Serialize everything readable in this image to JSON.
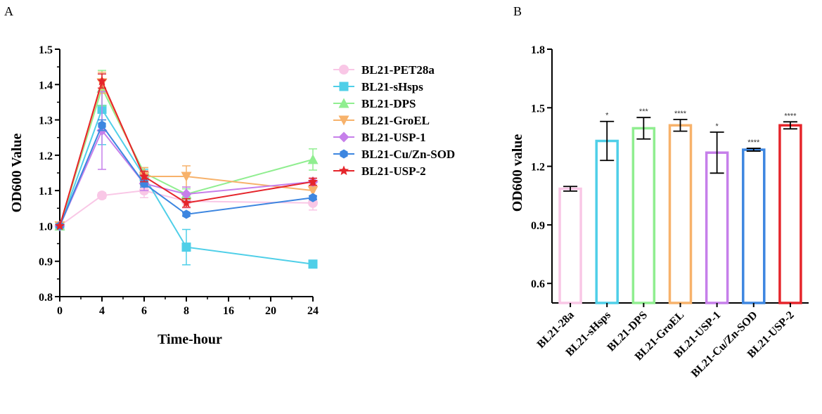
{
  "panels": {
    "a_label": "A",
    "b_label": "B"
  },
  "chart_data": [
    {
      "type": "line",
      "title": "",
      "xlabel": "Time-hour",
      "ylabel": "OD600 Value",
      "x_tick_labels": [
        "0",
        "4",
        "6",
        "8",
        "16",
        "20",
        "24"
      ],
      "x_categories": [
        "0",
        "4",
        "6",
        "8",
        "24"
      ],
      "y_ticks": [
        "0.8",
        "0.9",
        "1.0",
        "1.1",
        "1.2",
        "1.3",
        "1.4",
        "1.5"
      ],
      "ylim": [
        0.8,
        1.5
      ],
      "legend_position": "right",
      "series": [
        {
          "name": "BL21-PET28a",
          "color": "#F9C7E6",
          "marker": "circle",
          "values": [
            1.0,
            1.086,
            1.1,
            1.07,
            1.065
          ],
          "errors": [
            0,
            0.008,
            0.02,
            0.02,
            0.02
          ]
        },
        {
          "name": "BL21-sHsps",
          "color": "#4FCFE8",
          "marker": "square",
          "values": [
            1.0,
            1.33,
            1.14,
            0.94,
            0.892
          ],
          "errors": [
            0,
            0.1,
            0.02,
            0.05,
            0.005
          ]
        },
        {
          "name": "BL21-DPS",
          "color": "#90EE90",
          "marker": "triangle-up",
          "values": [
            1.0,
            1.39,
            1.15,
            1.09,
            1.188
          ],
          "errors": [
            0,
            0.05,
            0.015,
            0.015,
            0.03
          ]
        },
        {
          "name": "BL21-GroEL",
          "color": "#F7B26B",
          "marker": "triangle-down",
          "values": [
            1.0,
            1.405,
            1.14,
            1.14,
            1.1
          ],
          "errors": [
            0,
            0.03,
            0.025,
            0.03,
            0.015
          ]
        },
        {
          "name": "BL21-USP-1",
          "color": "#C67FEA",
          "marker": "diamond",
          "values": [
            1.0,
            1.27,
            1.12,
            1.09,
            1.125
          ],
          "errors": [
            0,
            0.11,
            0.02,
            0.02,
            0.01
          ]
        },
        {
          "name": "BL21-Cu/Zn-SOD",
          "color": "#3D86E0",
          "marker": "hexagon",
          "values": [
            1.0,
            1.285,
            1.12,
            1.033,
            1.08
          ],
          "errors": [
            0,
            0.015,
            0.01,
            0.005,
            0.005
          ]
        },
        {
          "name": "BL21-USP-2",
          "color": "#E5252B",
          "marker": "star",
          "values": [
            1.0,
            1.41,
            1.14,
            1.065,
            1.125
          ],
          "errors": [
            0,
            0.02,
            0.015,
            0.012,
            0.01
          ]
        }
      ]
    },
    {
      "type": "bar",
      "title": "",
      "xlabel": "",
      "ylabel": "OD600 value",
      "y_ticks": [
        "0.6",
        "0.9",
        "1.2",
        "1.5",
        "1.8"
      ],
      "ylim": [
        0.5,
        1.8
      ],
      "categories": [
        "BL21-28a",
        "BL21-sHsps",
        "BL21-DPS",
        "BL21-GroEL",
        "BL21-USP-1",
        "BL21-Cu/Zn-SOD",
        "BL21-USP-2"
      ],
      "values": [
        1.085,
        1.33,
        1.395,
        1.41,
        1.27,
        1.285,
        1.41
      ],
      "errors": [
        0.012,
        0.1,
        0.055,
        0.03,
        0.105,
        0.007,
        0.018
      ],
      "significance": [
        "",
        "*",
        "***",
        "****",
        "*",
        "****",
        "****"
      ],
      "colors": [
        "#F9C7E6",
        "#4FCFE8",
        "#90EE90",
        "#F7B26B",
        "#C67FEA",
        "#3D86E0",
        "#E5252B"
      ]
    }
  ]
}
